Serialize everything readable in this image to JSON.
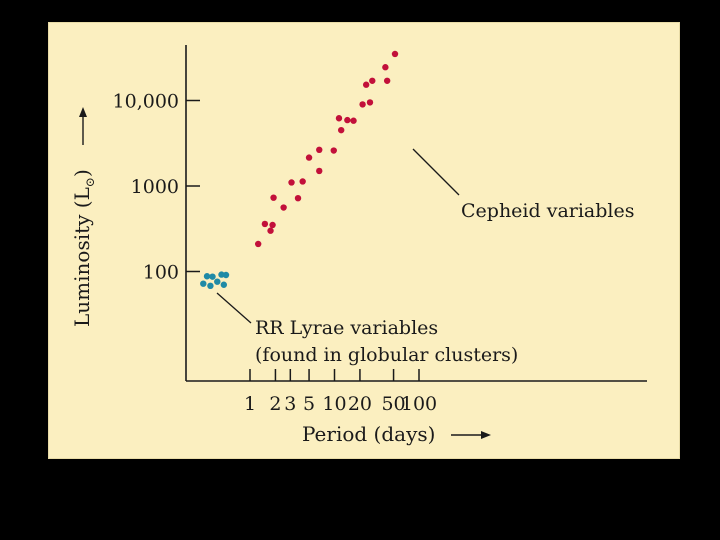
{
  "colors": {
    "background": "#000000",
    "panel": "#fbefc0",
    "axis": "#1a1a1a",
    "cepheid": "#c2103a",
    "rr_lyrae": "#1f8aa6"
  },
  "chart_data": {
    "type": "scatter",
    "xscale": "log",
    "yscale": "log",
    "xlabel": "Period (days)",
    "ylabel": "Luminosity (L",
    "ylabel_symbol": "⊙",
    "ylabel_close": ")",
    "xlim": [
      0.25,
      100
    ],
    "ylim": [
      10,
      40000
    ],
    "x_ticks": [
      {
        "value": 1,
        "label": "1"
      },
      {
        "value": 2,
        "label": "2"
      },
      {
        "value": 3,
        "label": "3"
      },
      {
        "value": 5,
        "label": "5"
      },
      {
        "value": 10,
        "label": "10"
      },
      {
        "value": 20,
        "label": "20"
      },
      {
        "value": 50,
        "label": "50"
      },
      {
        "value": 100,
        "label": "100"
      }
    ],
    "y_ticks": [
      {
        "value": 100,
        "label": "100"
      },
      {
        "value": 1000,
        "label": "1000"
      },
      {
        "value": 10000,
        "label": "10,000"
      }
    ],
    "series": [
      {
        "name": "Cepheid variables",
        "color": "#c2103a",
        "points": [
          {
            "x": 1.25,
            "y": 210
          },
          {
            "x": 1.5,
            "y": 360
          },
          {
            "x": 1.75,
            "y": 300
          },
          {
            "x": 1.85,
            "y": 350
          },
          {
            "x": 1.9,
            "y": 730
          },
          {
            "x": 2.5,
            "y": 560
          },
          {
            "x": 3.1,
            "y": 1100
          },
          {
            "x": 3.7,
            "y": 720
          },
          {
            "x": 4.2,
            "y": 1130
          },
          {
            "x": 5.0,
            "y": 2150
          },
          {
            "x": 6.6,
            "y": 2650
          },
          {
            "x": 6.6,
            "y": 1500
          },
          {
            "x": 9.8,
            "y": 2600
          },
          {
            "x": 11.3,
            "y": 6200
          },
          {
            "x": 12.0,
            "y": 4500
          },
          {
            "x": 14.2,
            "y": 5900
          },
          {
            "x": 16.8,
            "y": 5800
          },
          {
            "x": 21.5,
            "y": 9000
          },
          {
            "x": 23.7,
            "y": 15300
          },
          {
            "x": 26.3,
            "y": 9500
          },
          {
            "x": 28.0,
            "y": 17000
          },
          {
            "x": 40.0,
            "y": 24500
          },
          {
            "x": 42.0,
            "y": 17000
          },
          {
            "x": 52.0,
            "y": 35000
          }
        ]
      },
      {
        "name": "RR Lyrae variables",
        "color": "#1f8aa6",
        "points": [
          {
            "x": 0.28,
            "y": 72
          },
          {
            "x": 0.31,
            "y": 88
          },
          {
            "x": 0.34,
            "y": 68
          },
          {
            "x": 0.36,
            "y": 87
          },
          {
            "x": 0.41,
            "y": 76
          },
          {
            "x": 0.46,
            "y": 92
          },
          {
            "x": 0.49,
            "y": 70
          },
          {
            "x": 0.52,
            "y": 91
          }
        ]
      }
    ],
    "annotations": [
      {
        "series": "Cepheid variables",
        "lines": [
          "Cepheid variables"
        ]
      },
      {
        "series": "RR Lyrae variables",
        "lines": [
          "RR Lyrae variables",
          "(found in globular clusters)"
        ]
      }
    ]
  }
}
